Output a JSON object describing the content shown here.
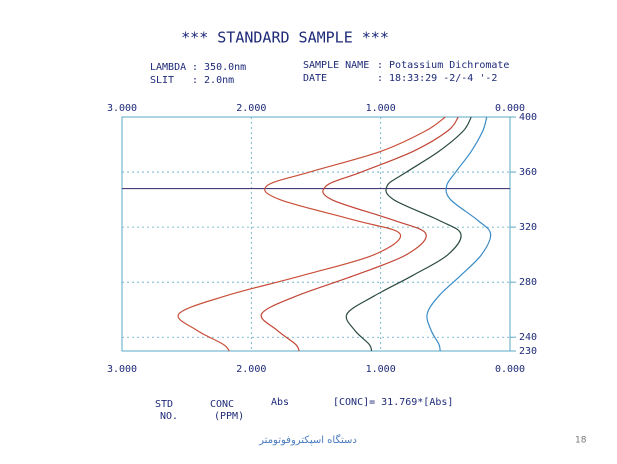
{
  "header": {
    "title": "*** STANDARD SAMPLE ***",
    "lambda_label": "LAMBDA",
    "lambda_value": ": 350.0nm",
    "slit_label": "SLIT",
    "slit_value": ": 2.0nm",
    "sample_label": "SAMPLE NAME",
    "sample_value": ": Potassium Dichromate",
    "date_label": "DATE",
    "date_value": ": 18:33:29 -2/-4 '-2"
  },
  "chart_data": {
    "type": "line",
    "orientation": "vertical",
    "x": [
      400,
      390,
      375,
      360,
      350,
      340,
      325,
      315,
      300,
      285,
      270,
      257,
      245,
      235,
      230
    ],
    "xlim": [
      3,
      0
    ],
    "xticks": [
      {
        "value": 3,
        "label": "3.000"
      },
      {
        "value": 2,
        "label": "2.000"
      },
      {
        "value": 1,
        "label": "1.000"
      },
      {
        "value": 0,
        "label": "0.000"
      }
    ],
    "ylim": [
      230,
      400
    ],
    "yticks": [
      400,
      360,
      320,
      280,
      240,
      230
    ],
    "grid": true,
    "marker_wavelength": 348,
    "series": [
      {
        "color": "#c8503a",
        "values": [
          0.5,
          0.65,
          1.0,
          1.55,
          1.88,
          1.78,
          1.2,
          0.85,
          1.05,
          1.6,
          2.2,
          2.56,
          2.42,
          2.22,
          2.17
        ]
      },
      {
        "color": "#c24536",
        "values": [
          0.4,
          0.48,
          0.75,
          1.15,
          1.42,
          1.38,
          0.9,
          0.65,
          0.8,
          1.2,
          1.65,
          1.92,
          1.8,
          1.66,
          1.63
        ]
      },
      {
        "color": "#2b4a40",
        "values": [
          0.3,
          0.36,
          0.55,
          0.8,
          0.95,
          0.9,
          0.55,
          0.38,
          0.48,
          0.75,
          1.05,
          1.26,
          1.2,
          1.09,
          1.07
        ]
      },
      {
        "color": "#3a8cc8",
        "values": [
          0.18,
          0.21,
          0.3,
          0.42,
          0.49,
          0.46,
          0.25,
          0.15,
          0.22,
          0.38,
          0.55,
          0.64,
          0.61,
          0.55,
          0.54
        ]
      }
    ]
  },
  "table_header": {
    "std": "STD",
    "no": "NO.",
    "conc": "CONC",
    "ppm": "(PPM)",
    "abs": "Abs",
    "formula": "[CONC]= 31.769*[Abs]"
  },
  "footer": {
    "caption": "دستگاه اسپکتروفوتومتر",
    "page": "18"
  }
}
